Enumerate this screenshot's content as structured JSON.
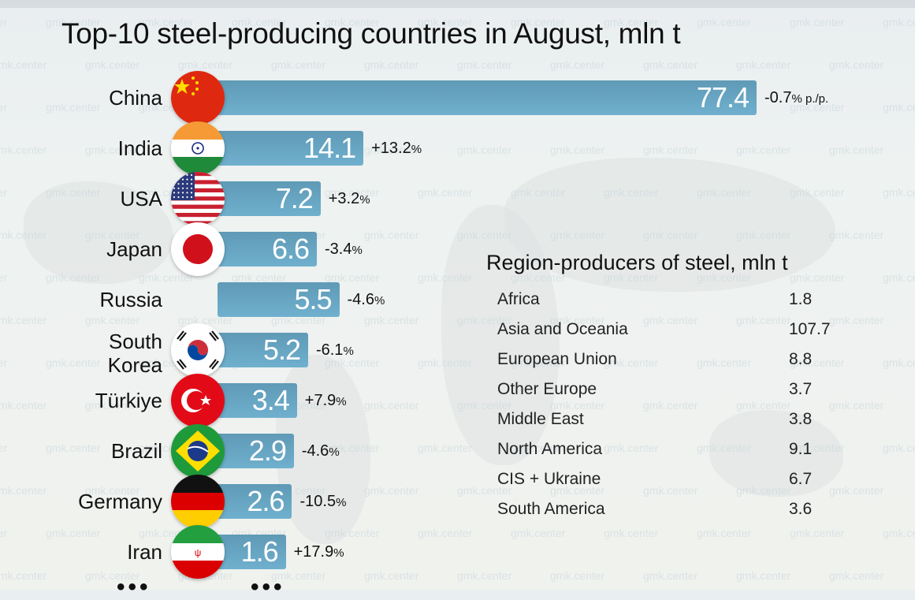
{
  "title": "Top-10 steel-producing countries in August, mln t",
  "watermark": "gmk.center",
  "accent_color": "#6aa9c8",
  "chart_data": {
    "type": "bar",
    "orientation": "horizontal",
    "title": "Top-10 steel-producing countries in August, mln t",
    "xlabel": "",
    "ylabel": "",
    "unit": "mln t",
    "categories": [
      "China",
      "India",
      "USA",
      "Japan",
      "Russia",
      "South Korea",
      "Türkiye",
      "Brazil",
      "Germany",
      "Iran"
    ],
    "values": [
      77.4,
      14.1,
      7.2,
      6.6,
      5.5,
      5.2,
      3.4,
      2.9,
      2.6,
      1.6
    ],
    "changes": [
      "-0.7%",
      "+13.2%",
      "+3.2%",
      "-3.4%",
      "-4.6%",
      "-6.1%",
      "+7.9%",
      "-4.6%",
      "-10.5%",
      "+17.9%"
    ],
    "change_suffix_first": "p./p.",
    "value_labels": [
      "77.4",
      "14.1",
      "7.2",
      "6.6",
      "5.5",
      "5.2",
      "3.4",
      "2.9",
      "2.6",
      "1.6"
    ],
    "flags": [
      "china-flag-icon",
      "india-flag-icon",
      "usa-flag-icon",
      "japan-flag-icon",
      "",
      "south-korea-flag-icon",
      "turkiye-flag-icon",
      "brazil-flag-icon",
      "germany-flag-icon",
      "iran-flag-icon"
    ],
    "continuation": "..."
  },
  "countries": [
    {
      "name": "China",
      "value": "77.4",
      "change": "-0.7",
      "suffix": "% p./p."
    },
    {
      "name": "India",
      "value": "14.1",
      "change": "+13.2",
      "suffix": "%"
    },
    {
      "name": "USA",
      "value": "7.2",
      "change": "+3.2",
      "suffix": "%"
    },
    {
      "name": "Japan",
      "value": "6.6",
      "change": "-3.4",
      "suffix": "%"
    },
    {
      "name": "Russia",
      "value": "5.5",
      "change": "-4.6",
      "suffix": "%"
    },
    {
      "name": "South Korea",
      "value": "5.2",
      "change": "-6.1",
      "suffix": "%"
    },
    {
      "name": "Türkiye",
      "value": "3.4",
      "change": "+7.9",
      "suffix": "%"
    },
    {
      "name": "Brazil",
      "value": "2.9",
      "change": "-4.6",
      "suffix": "%"
    },
    {
      "name": "Germany",
      "value": "2.6",
      "change": "-10.5",
      "suffix": "%"
    },
    {
      "name": "Iran",
      "value": "1.6",
      "change": "+17.9",
      "suffix": "%"
    }
  ],
  "regions": {
    "title": "Region-producers of steel, mln t",
    "items": [
      {
        "name": "Africa",
        "value": "1.8"
      },
      {
        "name": "Asia and Oceania",
        "value": "107.7"
      },
      {
        "name": "European Union",
        "value": "8.8"
      },
      {
        "name": "Other Europe",
        "value": "3.7"
      },
      {
        "name": "Middle East",
        "value": "3.8"
      },
      {
        "name": "North America",
        "value": "9.1"
      },
      {
        "name": "CIS + Ukraine",
        "value": "6.7"
      },
      {
        "name": "South America",
        "value": "3.6"
      }
    ]
  },
  "ellipsis": "•••"
}
